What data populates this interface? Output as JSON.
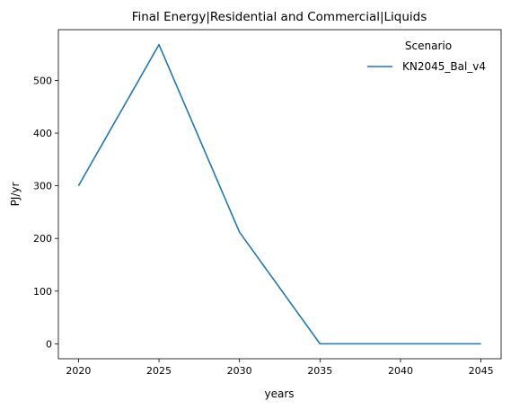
{
  "chart_data": {
    "type": "line",
    "title": "Final Energy|Residential and Commercial|Liquids",
    "xlabel": "years",
    "ylabel": "PJ/yr",
    "x": [
      2020,
      2025,
      2030,
      2035,
      2040,
      2045
    ],
    "series": [
      {
        "name": "KN2045_Bal_v4",
        "color": "#1f77b4",
        "values": [
          300,
          568,
          212,
          0,
          0,
          0
        ]
      }
    ],
    "xlim": [
      2018.75,
      2046.25
    ],
    "ylim": [
      -28.4,
      596.4
    ],
    "xticks": [
      2020,
      2025,
      2030,
      2035,
      2040,
      2045
    ],
    "yticks": [
      0,
      100,
      200,
      300,
      400,
      500
    ],
    "grid": false,
    "legend": {
      "title": "Scenario",
      "placement": "top-right",
      "frame": false
    }
  }
}
